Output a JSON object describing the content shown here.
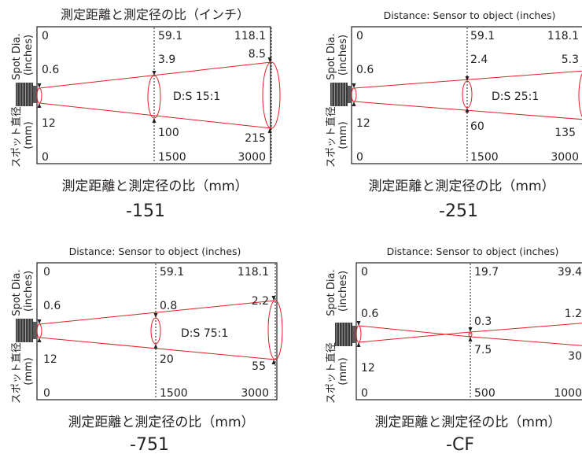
{
  "side_labels": {
    "inches_line1": "Spot Dia.",
    "inches_line2": "(inches)",
    "mm_line1": "スポット直径",
    "mm_line2": "(mm)"
  },
  "colors": {
    "beam": "#e31e24",
    "text": "#231f20",
    "frame": "#231f20"
  },
  "panels": [
    {
      "top_title": "測定距離と測定径の比（インチ）",
      "bottom_title": "測定距離と測定径の比（mm）",
      "model": "-151",
      "ratio_label": "D:S 15:1",
      "distance_in": [
        "0",
        "59.1",
        "118.1"
      ],
      "spot_in": [
        "0.6",
        "3.9",
        "8.5"
      ],
      "spot_mm": [
        "12",
        "100",
        "215"
      ],
      "distance_mm": [
        "0",
        "1500",
        "3000"
      ],
      "beam_type": "diverging"
    },
    {
      "top_title": "Distance: Sensor to object (inches)",
      "bottom_title": "測定距離と測定径の比（mm）",
      "model": "-251",
      "ratio_label": "D:S 25:1",
      "distance_in": [
        "0",
        "59.1",
        "118.1"
      ],
      "spot_in": [
        "0.6",
        "2.4",
        "5.3"
      ],
      "spot_mm": [
        "12",
        "60",
        "135"
      ],
      "distance_mm": [
        "0",
        "1500",
        "3000"
      ],
      "beam_type": "diverging"
    },
    {
      "top_title": "Distance: Sensor to object (inches)",
      "bottom_title": "測定距離と測定径の比（mm）",
      "model": "-751",
      "ratio_label": "D:S 75:1",
      "distance_in": [
        "0",
        "59.1",
        "118.1"
      ],
      "spot_in": [
        "0.6",
        "0.8",
        "2.2"
      ],
      "spot_mm": [
        "12",
        "20",
        "55"
      ],
      "distance_mm": [
        "0",
        "1500",
        "3000"
      ],
      "beam_type": "diverging"
    },
    {
      "top_title": "Distance: Sensor to object (inches)",
      "bottom_title": "測定距離と測定径の比（mm）",
      "model": "-CF",
      "ratio_label": "",
      "distance_in": [
        "0",
        "19.7",
        "39.4"
      ],
      "spot_in": [
        "0.6",
        "0.3",
        "1.2"
      ],
      "spot_mm": [
        "12",
        "7.5",
        "30"
      ],
      "distance_mm": [
        "0",
        "500",
        "1000"
      ],
      "beam_type": "focused"
    }
  ]
}
